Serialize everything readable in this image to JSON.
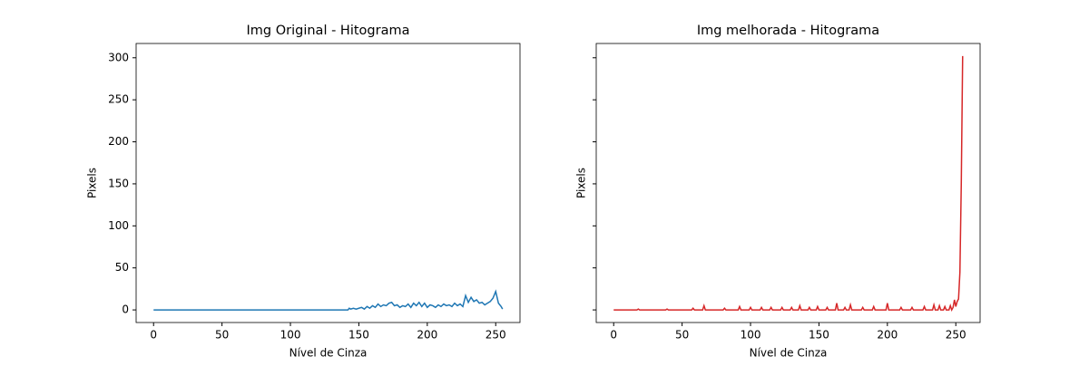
{
  "chart_data": [
    {
      "type": "line",
      "title": "Img Original - Hitograma",
      "xlabel": "Nível de Cinza",
      "ylabel": "Pixels",
      "xlim": [
        -12.75,
        267.75
      ],
      "ylim": [
        -15,
        317
      ],
      "xticks": [
        0,
        50,
        100,
        150,
        200,
        250
      ],
      "yticks": [
        0,
        50,
        100,
        150,
        200,
        250,
        300
      ],
      "series": [
        {
          "color": "#1f77b4",
          "x": [
            0,
            142,
            143,
            144,
            146,
            148,
            150,
            152,
            154,
            156,
            158,
            160,
            162,
            164,
            166,
            168,
            170,
            172,
            174,
            176,
            178,
            180,
            182,
            184,
            186,
            188,
            190,
            192,
            194,
            196,
            198,
            200,
            202,
            204,
            206,
            208,
            210,
            212,
            214,
            216,
            218,
            220,
            222,
            224,
            226,
            228,
            230,
            232,
            234,
            236,
            238,
            240,
            242,
            244,
            246,
            248,
            250,
            252,
            254,
            255
          ],
          "values": [
            0,
            0,
            2,
            1,
            2,
            1,
            2,
            3,
            1,
            4,
            2,
            5,
            3,
            7,
            4,
            6,
            5,
            8,
            9,
            5,
            6,
            3,
            5,
            4,
            7,
            3,
            8,
            5,
            9,
            4,
            8,
            3,
            6,
            5,
            3,
            6,
            4,
            7,
            5,
            6,
            4,
            8,
            5,
            7,
            4,
            17,
            9,
            15,
            10,
            12,
            8,
            9,
            6,
            8,
            10,
            14,
            22,
            8,
            4,
            1
          ]
        }
      ]
    },
    {
      "type": "line",
      "title": "Img melhorada - Hitograma",
      "xlabel": "Nível de Cinza",
      "ylabel": "Pixels",
      "sharey": true,
      "xlim": [
        -12.75,
        267.75
      ],
      "xticks": [
        0,
        50,
        100,
        150,
        200,
        250
      ],
      "series": [
        {
          "color": "#d62728",
          "x": [
            0,
            17,
            18,
            19,
            38,
            39,
            40,
            57,
            58,
            59,
            65,
            66,
            67,
            80,
            81,
            82,
            91,
            92,
            93,
            99,
            100,
            101,
            107,
            108,
            109,
            114,
            115,
            116,
            122,
            123,
            124,
            129,
            130,
            131,
            135,
            136,
            137,
            142,
            143,
            144,
            148,
            149,
            150,
            155,
            156,
            157,
            162,
            163,
            164,
            168,
            169,
            170,
            172,
            173,
            174,
            181,
            182,
            183,
            189,
            190,
            191,
            199,
            200,
            201,
            209,
            210,
            211,
            217,
            218,
            219,
            226,
            227,
            228,
            233,
            234,
            235,
            237,
            238,
            239,
            241,
            242,
            243,
            245,
            246,
            247,
            248,
            249,
            250,
            251,
            252,
            253,
            254,
            255
          ],
          "values": [
            0,
            0,
            1,
            0,
            0,
            1,
            0,
            0,
            2,
            0,
            0,
            5,
            0,
            0,
            2,
            0,
            0,
            4,
            0,
            0,
            3,
            0,
            0,
            3,
            0,
            0,
            3,
            0,
            0,
            3,
            0,
            0,
            3,
            0,
            0,
            5,
            0,
            0,
            3,
            0,
            0,
            4,
            0,
            0,
            3,
            0,
            0,
            8,
            0,
            0,
            3,
            0,
            0,
            6,
            0,
            0,
            3,
            0,
            0,
            4,
            0,
            0,
            8,
            0,
            0,
            3,
            0,
            0,
            3,
            0,
            0,
            4,
            0,
            0,
            6,
            0,
            0,
            5,
            0,
            0,
            4,
            0,
            0,
            5,
            0,
            3,
            12,
            4,
            10,
            13,
            45,
            150,
            302
          ]
        }
      ]
    }
  ]
}
